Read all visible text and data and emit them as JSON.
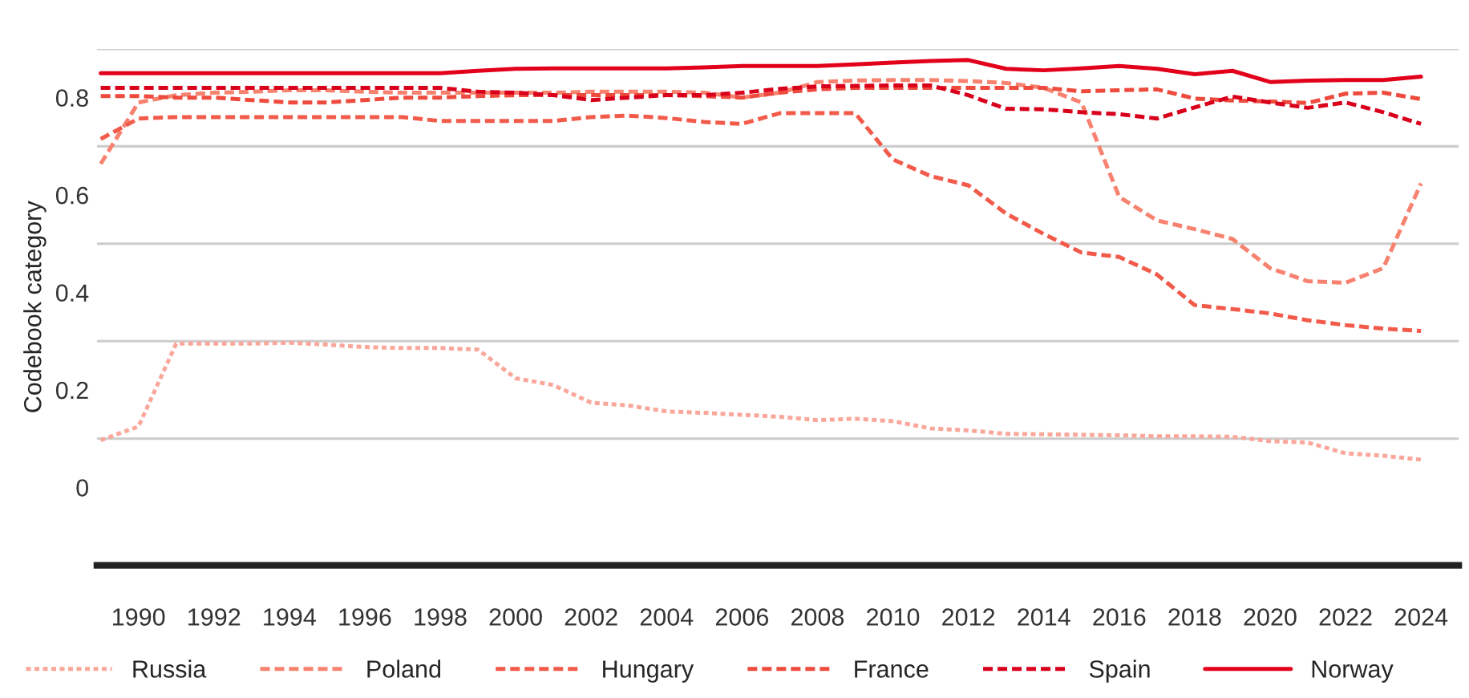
{
  "chart_data": {
    "type": "line",
    "ylabel": "Codebook category",
    "x": [
      1989,
      1990,
      1991,
      1992,
      1993,
      1994,
      1995,
      1996,
      1997,
      1998,
      1999,
      2000,
      2001,
      2002,
      2003,
      2004,
      2005,
      2006,
      2007,
      2008,
      2009,
      2010,
      2011,
      2012,
      2013,
      2014,
      2015,
      2016,
      2017,
      2018,
      2019,
      2020,
      2021,
      2022,
      2023,
      2024
    ],
    "series": [
      {
        "name": "Russia",
        "color": "#f9a79a",
        "line_style": "dotted",
        "values": [
          0.097,
          0.125,
          0.295,
          0.295,
          0.295,
          0.297,
          0.293,
          0.288,
          0.286,
          0.286,
          0.283,
          0.224,
          0.21,
          0.174,
          0.168,
          0.156,
          0.153,
          0.149,
          0.145,
          0.138,
          0.141,
          0.136,
          0.121,
          0.117,
          0.11,
          0.109,
          0.108,
          0.107,
          0.105,
          0.105,
          0.104,
          0.095,
          0.092,
          0.07,
          0.065,
          0.057
        ]
      },
      {
        "name": "Poland",
        "color": "#f7826f",
        "line_style": "dashed",
        "values": [
          0.664,
          0.79,
          0.805,
          0.81,
          0.812,
          0.815,
          0.815,
          0.812,
          0.81,
          0.81,
          0.81,
          0.81,
          0.81,
          0.812,
          0.812,
          0.812,
          0.81,
          0.8,
          0.81,
          0.832,
          0.835,
          0.836,
          0.836,
          0.834,
          0.83,
          0.82,
          0.79,
          0.596,
          0.548,
          0.53,
          0.51,
          0.45,
          0.423,
          0.42,
          0.45,
          0.624
        ]
      },
      {
        "name": "Hungary",
        "color": "#f25a4a",
        "line_style": "dashed",
        "values": [
          0.715,
          0.757,
          0.76,
          0.76,
          0.76,
          0.76,
          0.76,
          0.76,
          0.76,
          0.752,
          0.752,
          0.752,
          0.752,
          0.76,
          0.763,
          0.758,
          0.75,
          0.746,
          0.768,
          0.768,
          0.768,
          0.673,
          0.639,
          0.62,
          0.562,
          0.52,
          0.482,
          0.473,
          0.437,
          0.374,
          0.366,
          0.357,
          0.343,
          0.333,
          0.326,
          0.321
        ]
      },
      {
        "name": "France",
        "color": "#ee4a3d",
        "line_style": "dashed",
        "values": [
          0.803,
          0.803,
          0.8,
          0.8,
          0.795,
          0.79,
          0.79,
          0.795,
          0.8,
          0.8,
          0.803,
          0.805,
          0.805,
          0.805,
          0.805,
          0.805,
          0.803,
          0.8,
          0.81,
          0.817,
          0.82,
          0.82,
          0.82,
          0.82,
          0.82,
          0.82,
          0.813,
          0.815,
          0.817,
          0.798,
          0.794,
          0.792,
          0.789,
          0.808,
          0.81,
          0.797
        ]
      },
      {
        "name": "Spain",
        "color": "#d9001b",
        "line_style": "dashed",
        "values": [
          0.82,
          0.82,
          0.82,
          0.82,
          0.82,
          0.82,
          0.82,
          0.82,
          0.82,
          0.82,
          0.812,
          0.81,
          0.805,
          0.795,
          0.8,
          0.805,
          0.805,
          0.81,
          0.818,
          0.823,
          0.824,
          0.825,
          0.825,
          0.805,
          0.777,
          0.776,
          0.77,
          0.766,
          0.757,
          0.78,
          0.802,
          0.79,
          0.779,
          0.79,
          0.77,
          0.746
        ]
      },
      {
        "name": "Norway",
        "color": "#e2001a",
        "line_style": "solid",
        "values": [
          0.85,
          0.85,
          0.85,
          0.85,
          0.85,
          0.85,
          0.85,
          0.85,
          0.85,
          0.85,
          0.855,
          0.859,
          0.86,
          0.86,
          0.86,
          0.86,
          0.862,
          0.865,
          0.865,
          0.865,
          0.868,
          0.872,
          0.875,
          0.877,
          0.859,
          0.856,
          0.86,
          0.865,
          0.859,
          0.848,
          0.855,
          0.832,
          0.835,
          0.836,
          0.836,
          0.843
        ]
      }
    ],
    "xlim": [
      1988.9,
      2025
    ],
    "xticks": [
      1990,
      1992,
      1994,
      1996,
      1998,
      2000,
      2002,
      2004,
      2006,
      2008,
      2010,
      2012,
      2014,
      2016,
      2018,
      2020,
      2022,
      2024
    ],
    "ylim": [
      -0.16,
      0.9
    ],
    "yticks": [
      0,
      {
        "value": 0.1,
        "label": null
      },
      0.2,
      {
        "value": 0.3,
        "label": null
      },
      0.4,
      {
        "value": 0.5,
        "label": null
      },
      0.6,
      {
        "value": 0.7,
        "label": null
      },
      0.8,
      {
        "value": 0.9,
        "label": null
      }
    ],
    "grid": "y",
    "legend": "bottom"
  }
}
